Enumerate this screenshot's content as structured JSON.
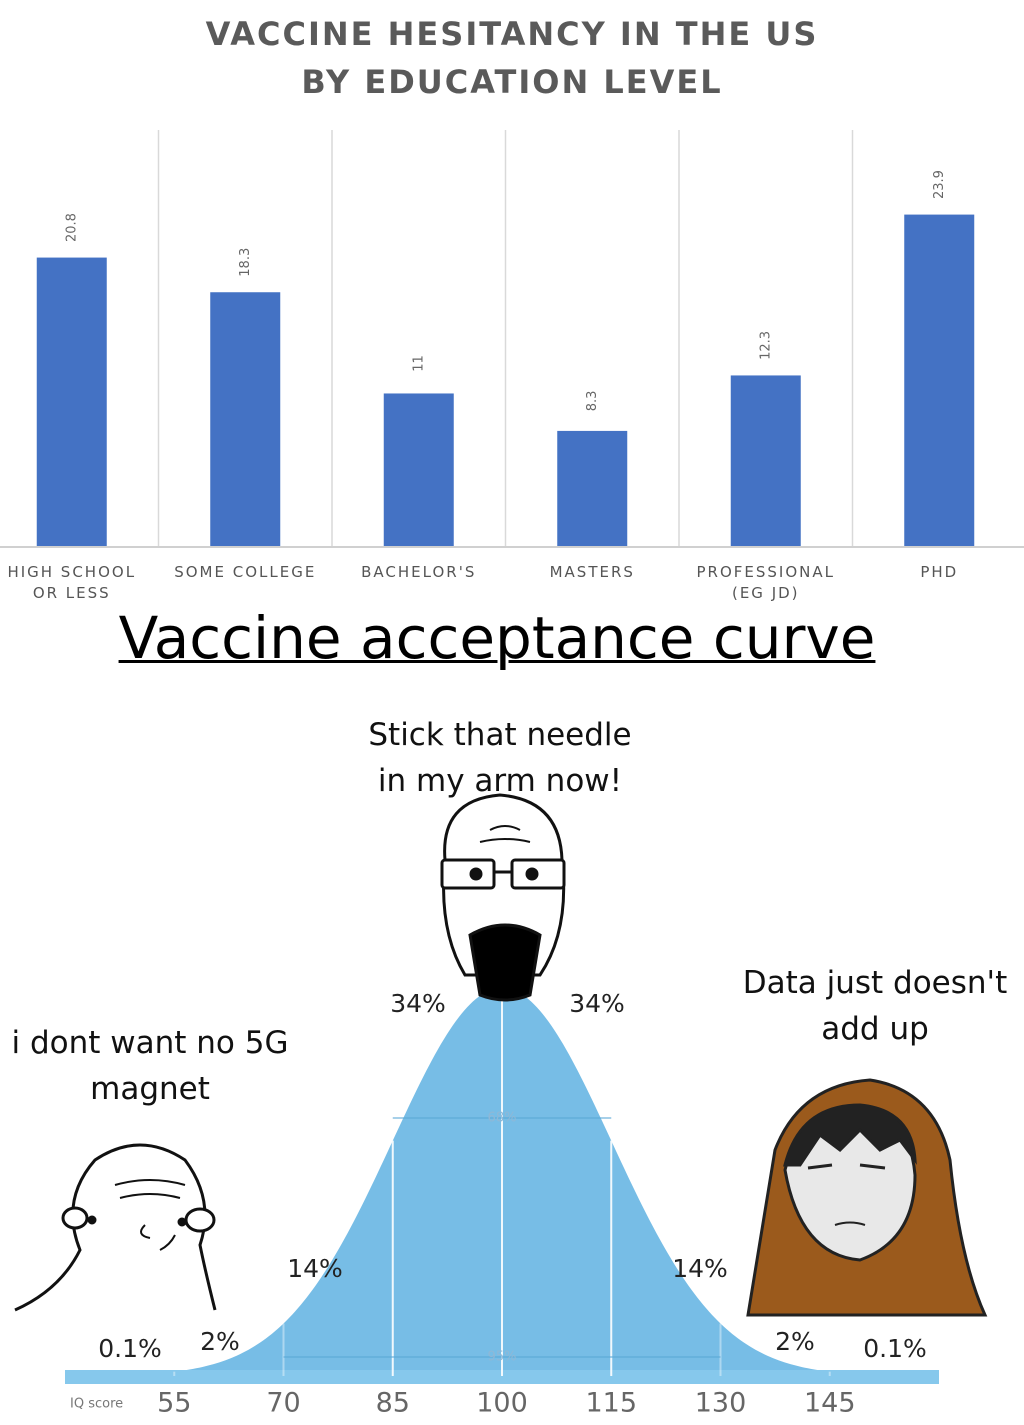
{
  "chart_data": [
    {
      "type": "bar",
      "title": "VACCINE HESITANCY IN THE US\nBY EDUCATION LEVEL",
      "categories": [
        "HIGH SCHOOL\nOR LESS",
        "SOME COLLEGE",
        "BACHELOR'S",
        "MASTERS",
        "PROFESSIONAL\n(EG JD)",
        "PHD"
      ],
      "values": [
        20.8,
        18.3,
        11,
        8.3,
        12.3,
        23.9
      ],
      "color": "#4472c4",
      "ylim": [
        0,
        30
      ]
    },
    {
      "type": "bell",
      "title": "Vaccine acceptance curve",
      "x_label": "IQ score",
      "xlim": [
        40,
        160
      ],
      "xticks": [
        55,
        70,
        85,
        100,
        115,
        130,
        145
      ],
      "color": "#77bde6",
      "values": [
        0.1,
        2,
        14,
        34,
        34,
        14,
        2,
        0.1
      ],
      "value_labels": [
        "0.1%",
        "2%",
        "14%",
        "34%",
        "34%",
        "14%",
        "2%",
        "0.1%"
      ],
      "inner_values": [
        68,
        95
      ],
      "inner_value_labels": [
        "68%",
        "95%"
      ],
      "captions": [
        "i dont want no 5G\nmagnet",
        "Stick that needle\nin my arm now!",
        "Data just doesn't\nadd up"
      ]
    }
  ]
}
